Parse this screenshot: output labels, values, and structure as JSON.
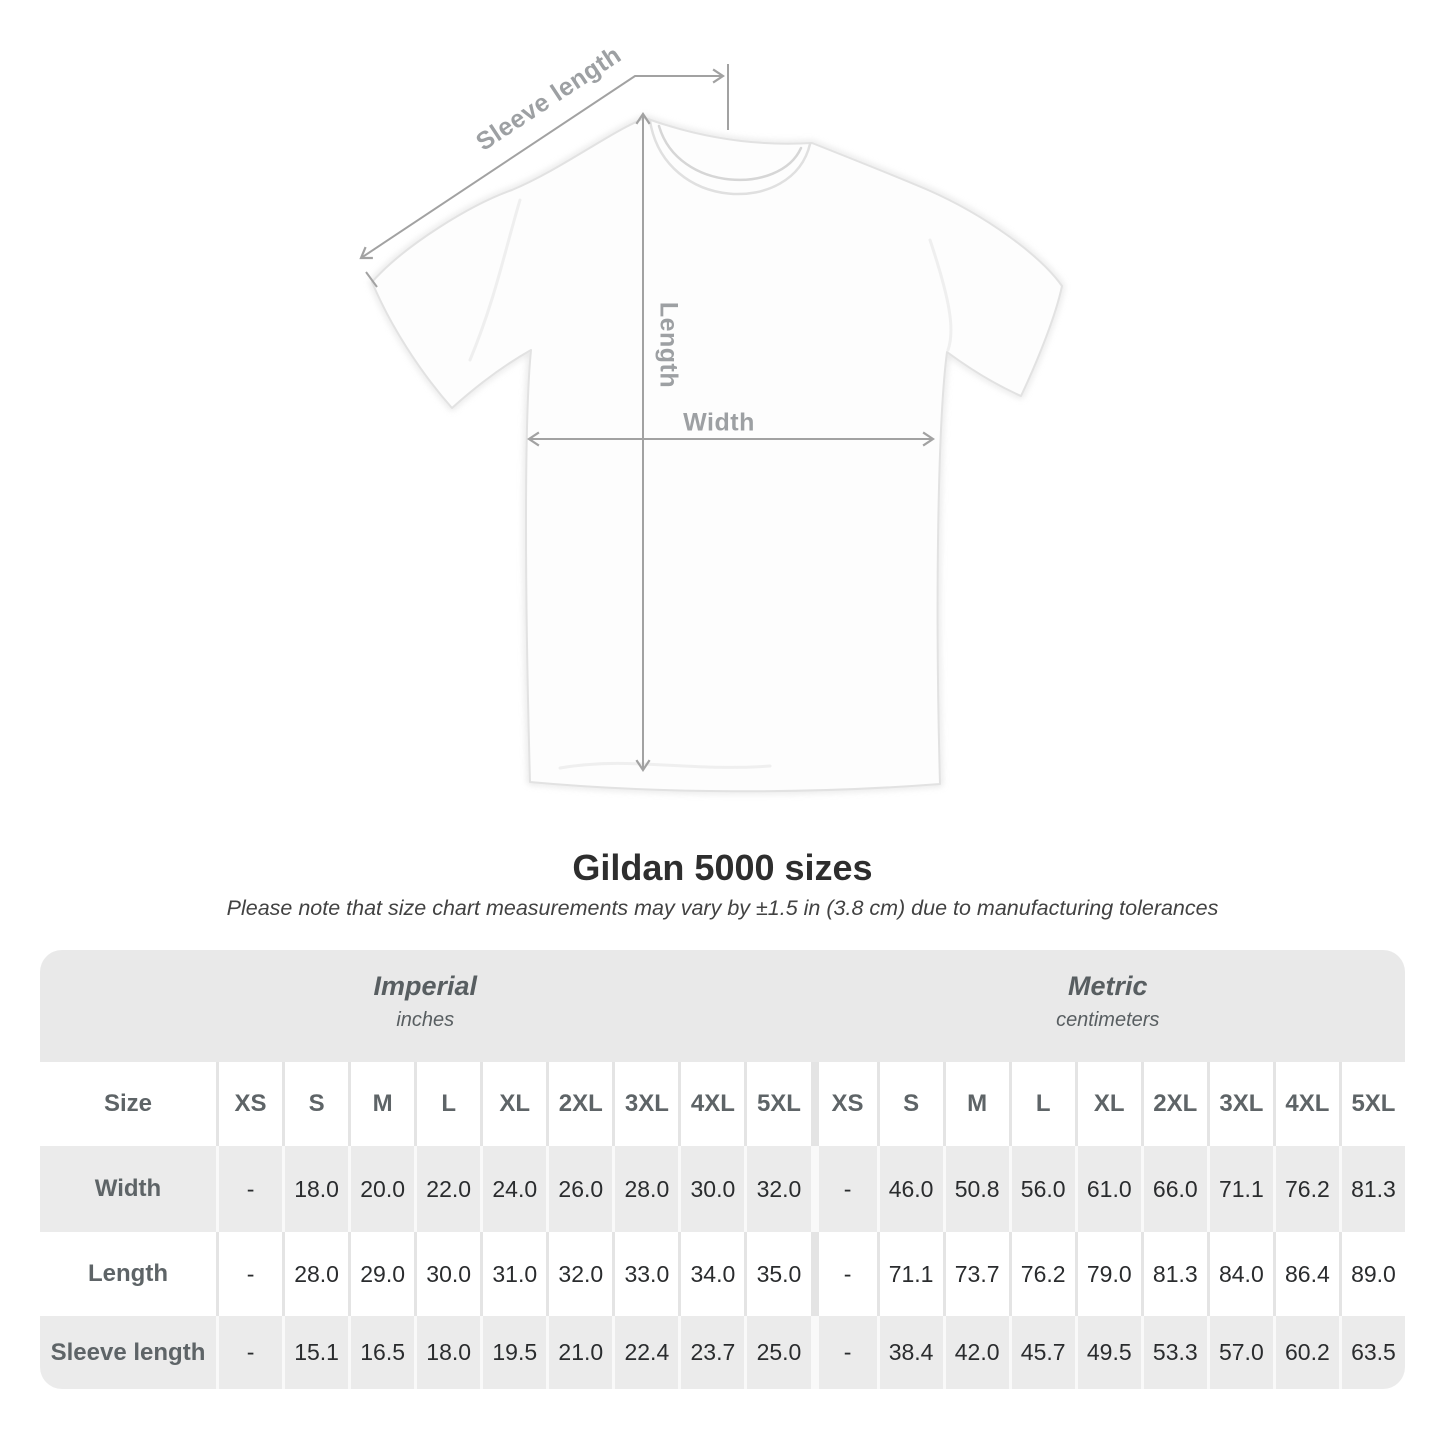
{
  "diagram": {
    "sleeve_length_label": "Sleeve length",
    "length_label": "Length",
    "width_label": "Width"
  },
  "title": "Gildan 5000 sizes",
  "subtitle": "Please note that size chart measurements may vary by ±1.5 in (3.8 cm) due to manufacturing tolerances",
  "chart_data": {
    "type": "table",
    "size_column_header": "Size",
    "sizes": [
      "XS",
      "S",
      "M",
      "L",
      "XL",
      "2XL",
      "3XL",
      "4XL",
      "5XL"
    ],
    "sections": [
      {
        "label": "Imperial",
        "sublabel": "inches"
      },
      {
        "label": "Metric",
        "sublabel": "centimeters"
      }
    ],
    "rows": [
      {
        "label": "Width",
        "imperial": [
          "-",
          "18.0",
          "20.0",
          "22.0",
          "24.0",
          "26.0",
          "28.0",
          "30.0",
          "32.0"
        ],
        "metric": [
          "-",
          "46.0",
          "50.8",
          "56.0",
          "61.0",
          "66.0",
          "71.1",
          "76.2",
          "81.3"
        ]
      },
      {
        "label": "Length",
        "imperial": [
          "-",
          "28.0",
          "29.0",
          "30.0",
          "31.0",
          "32.0",
          "33.0",
          "34.0",
          "35.0"
        ],
        "metric": [
          "-",
          "71.1",
          "73.7",
          "76.2",
          "79.0",
          "81.3",
          "84.0",
          "86.4",
          "89.0"
        ]
      },
      {
        "label": "Sleeve length",
        "imperial": [
          "-",
          "15.1",
          "16.5",
          "18.0",
          "19.5",
          "21.0",
          "22.4",
          "23.7",
          "25.0"
        ],
        "metric": [
          "-",
          "38.4",
          "42.0",
          "45.7",
          "49.5",
          "53.3",
          "57.0",
          "60.2",
          "63.5"
        ]
      }
    ]
  },
  "colors": {
    "band_gray": "#e9e9e9",
    "row_gray": "#ebebeb",
    "header_text": "#5e6467",
    "data_text": "#2a2c2e",
    "annotation_gray": "#9da0a3",
    "arrow_gray": "#a2a2a2"
  }
}
